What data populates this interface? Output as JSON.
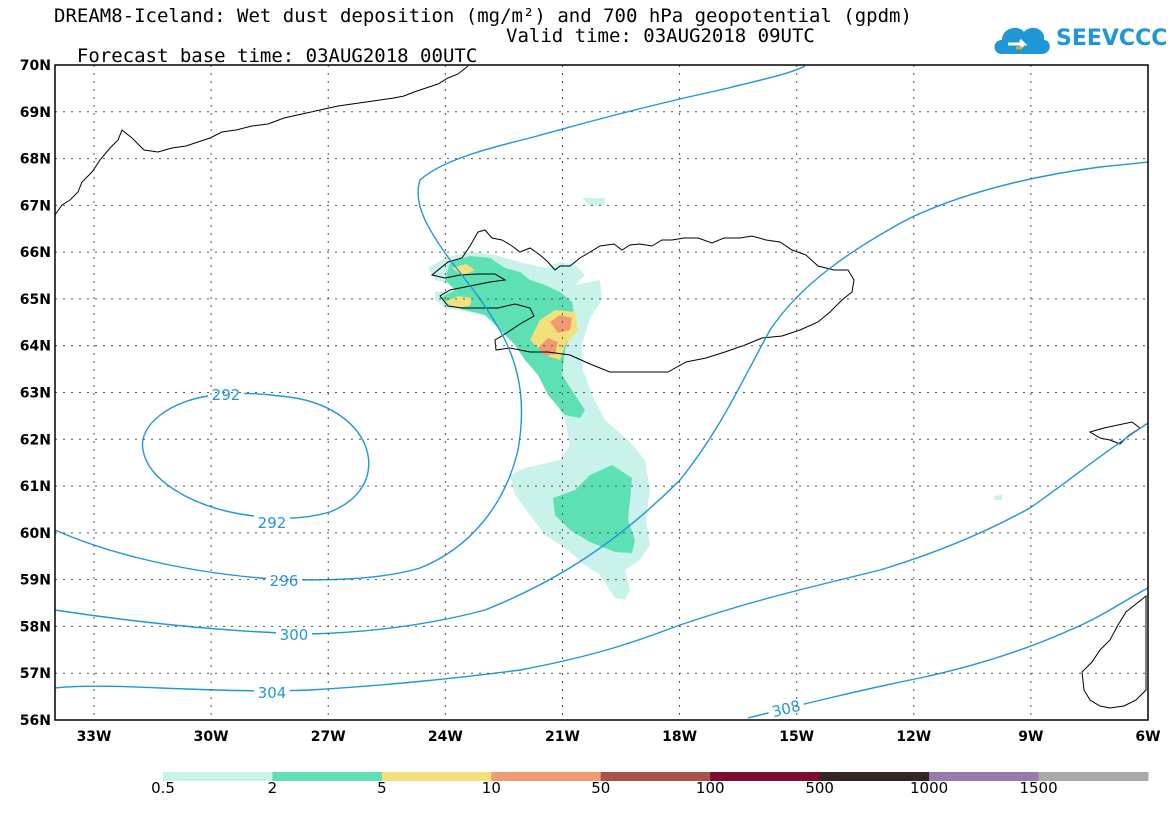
{
  "title": {
    "line1": "DREAM8-Iceland: Wet dust deposition (mg/m²) and 700 hPa geopotential (gpdm)",
    "base": "Forecast base time: 03AUG2018 00UTC",
    "valid": "Valid time: 03AUG2018 09UTC"
  },
  "logo": {
    "text": "SEEVCCC"
  },
  "map": {
    "lat_labels": [
      "70N",
      "69N",
      "68N",
      "67N",
      "66N",
      "65N",
      "64N",
      "63N",
      "62N",
      "61N",
      "60N",
      "59N",
      "58N",
      "57N",
      "56N"
    ],
    "lon_labels": [
      "33W",
      "30W",
      "27W",
      "24W",
      "21W",
      "18W",
      "15W",
      "12W",
      "9W",
      "6W"
    ],
    "contour_labels": [
      "292",
      "292",
      "296",
      "300",
      "304",
      "308"
    ]
  },
  "colorbar": {
    "labels": [
      "0.5",
      "2",
      "5",
      "10",
      "50",
      "100",
      "500",
      "1000",
      "1500"
    ],
    "colors": [
      "#c8f2ea",
      "#5ce0b4",
      "#f4e07a",
      "#f09a74",
      "#a9524a",
      "#7d0a32",
      "#332622",
      "#9a7aad",
      "#aaaaaa"
    ]
  },
  "colors": {
    "contour": "#1f97d6",
    "coast": "#000000"
  }
}
